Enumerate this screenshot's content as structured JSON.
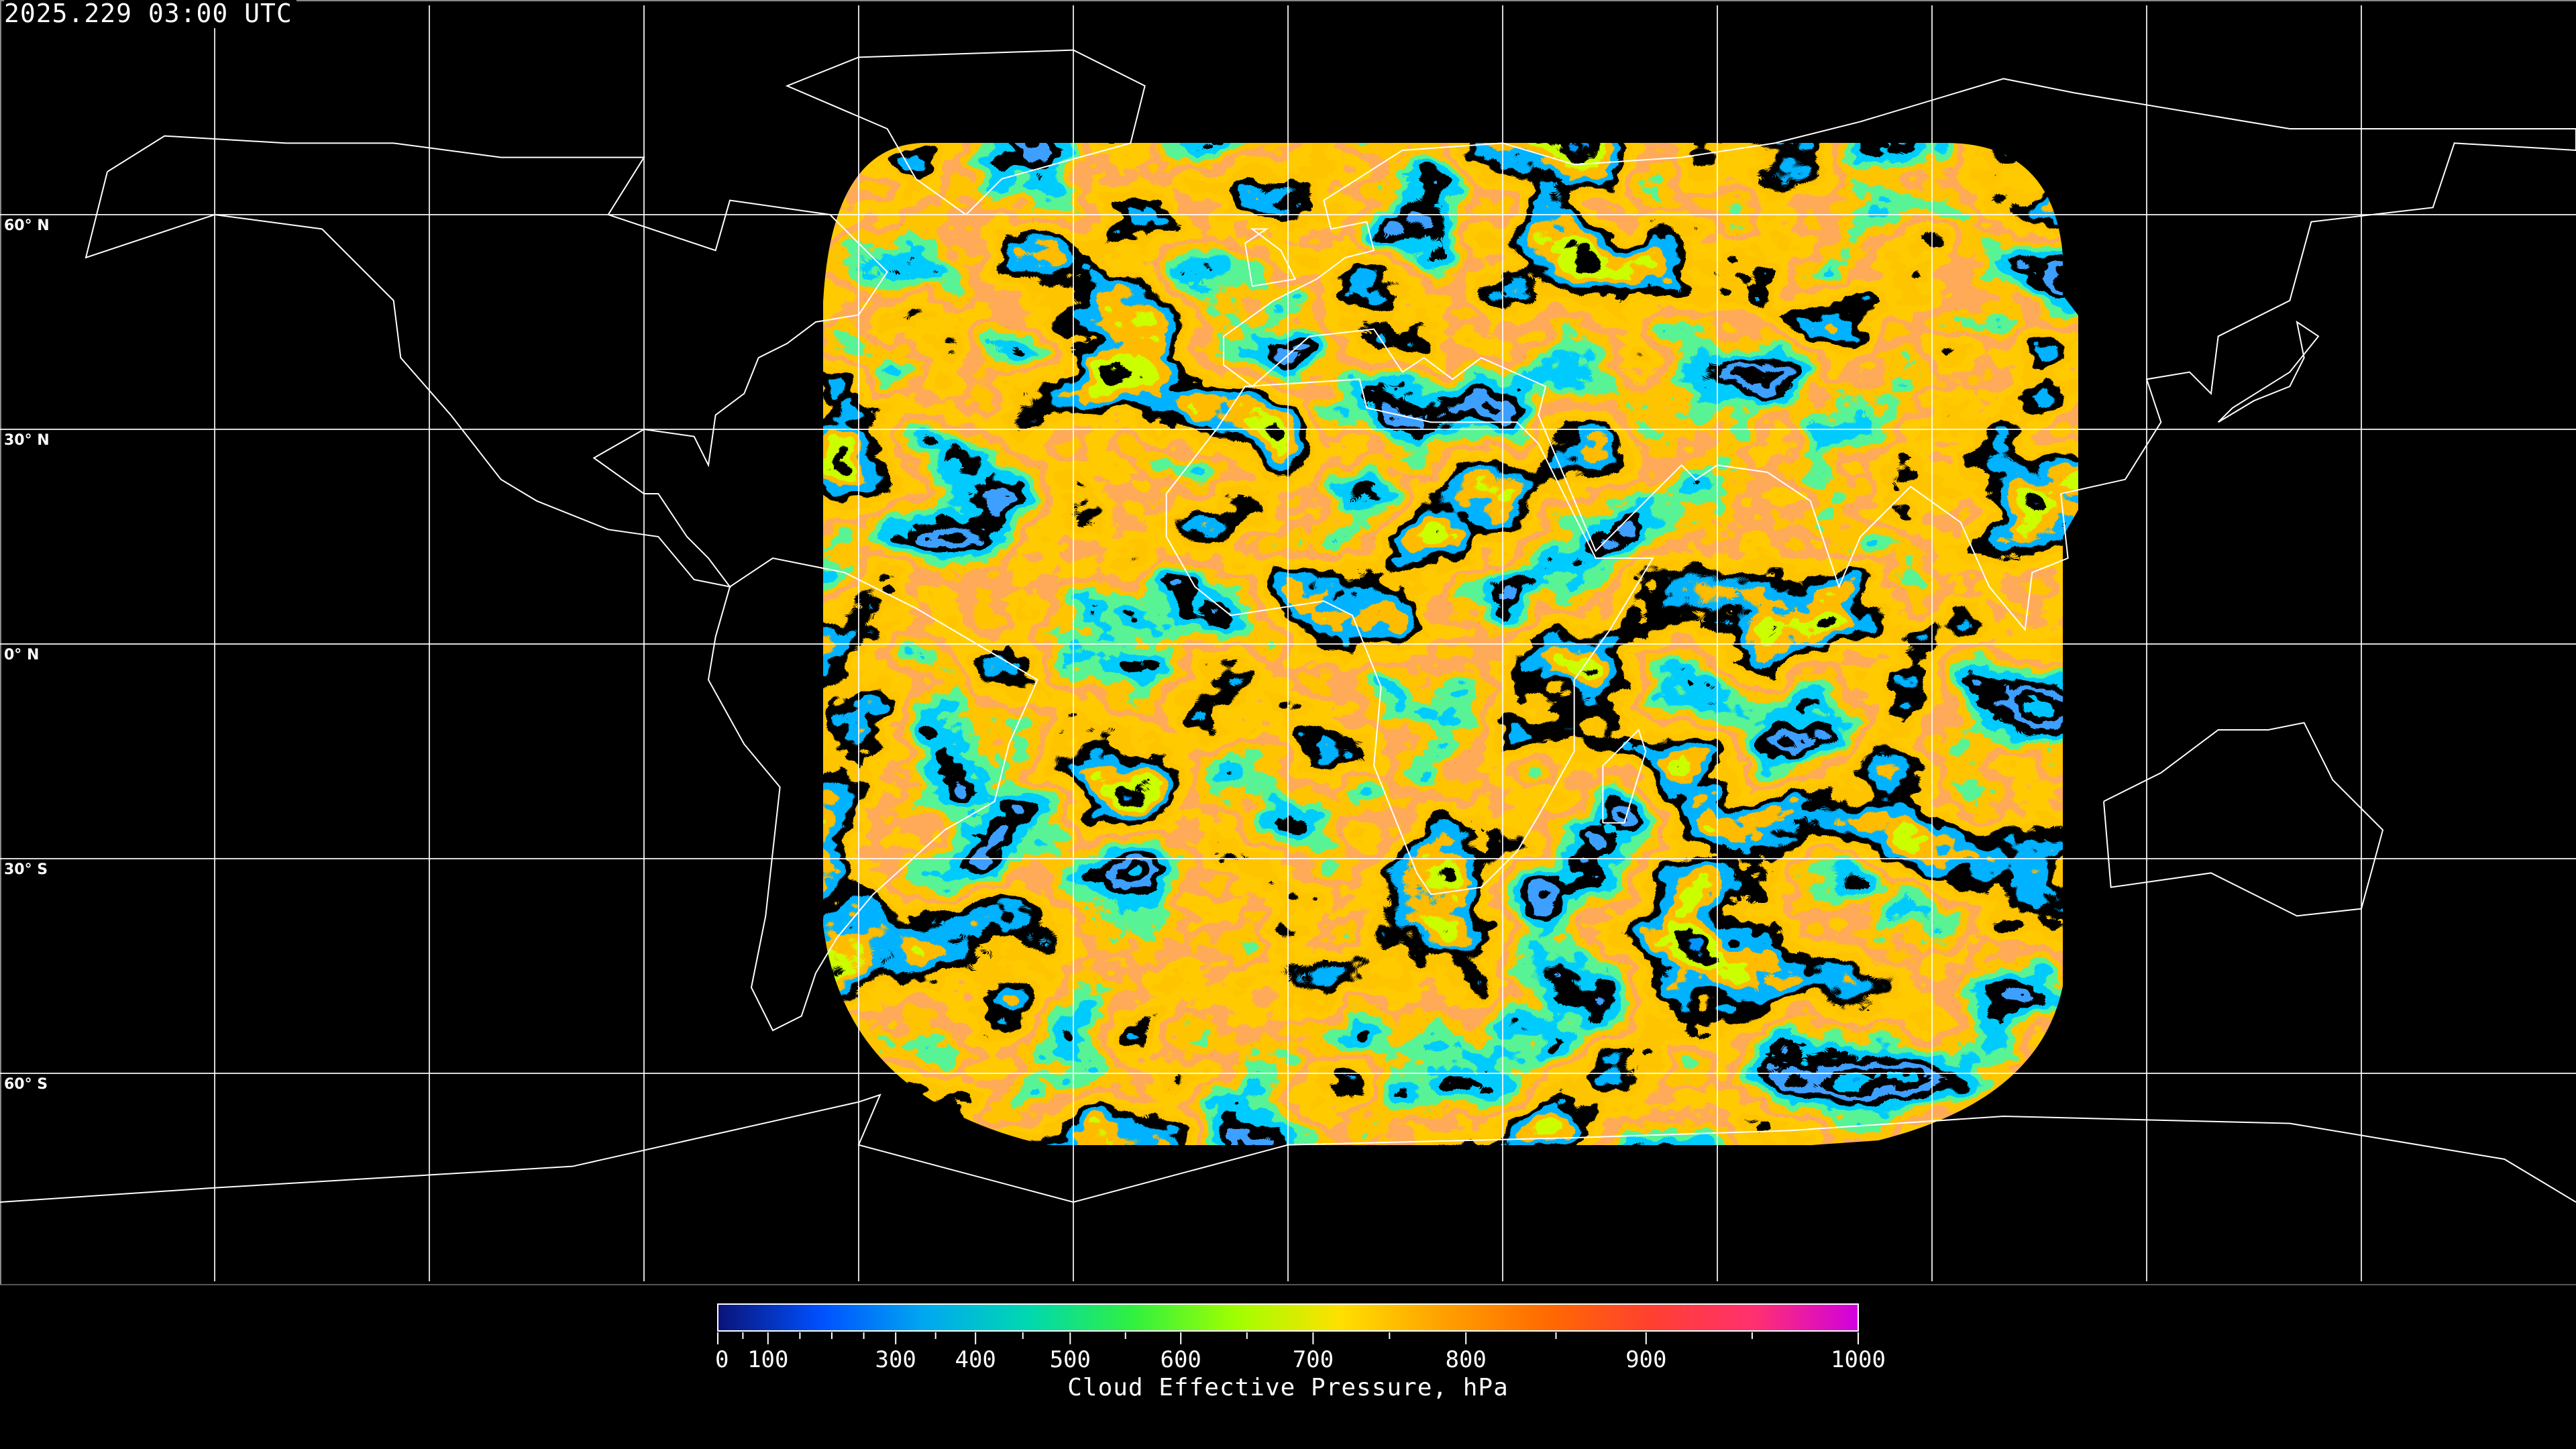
{
  "header": {
    "timestamp": "2025.229 03:00 UTC"
  },
  "map": {
    "projection": "equirectangular",
    "lon_range": [
      -180,
      180
    ],
    "lat_range": [
      90,
      -90
    ],
    "graticule_lons": [
      -150,
      -120,
      -90,
      -60,
      -30,
      0,
      30,
      60,
      90,
      120,
      150
    ],
    "graticule_lats": [
      60,
      30,
      0,
      -30,
      -60
    ],
    "lat_labels": [
      "60° N",
      "30° N",
      "0° N",
      "30° S",
      "60° S"
    ],
    "coastline_color": "#ffffff",
    "grid_color": "#ffffff"
  },
  "colorbar": {
    "title": "Cloud Effective Pressure, hPa",
    "min": 0,
    "max": 1000,
    "major_ticks": [
      {
        "value": 0,
        "label": "0"
      },
      {
        "value": 100,
        "label": "100"
      },
      {
        "value": 300,
        "label": "300"
      },
      {
        "value": 400,
        "label": "400"
      },
      {
        "value": 500,
        "label": "500"
      },
      {
        "value": 600,
        "label": "600"
      },
      {
        "value": 700,
        "label": "700"
      },
      {
        "value": 800,
        "label": "800"
      },
      {
        "value": 900,
        "label": "900"
      },
      {
        "value": 1000,
        "label": "1000"
      }
    ],
    "minor_ticks": [
      50,
      150,
      200,
      250,
      350,
      450,
      550,
      650,
      750,
      850,
      950
    ],
    "colors": [
      "#0a1478",
      "#0050ff",
      "#00a8f0",
      "#00d8b0",
      "#30f040",
      "#a0ff00",
      "#ffe000",
      "#ffa000",
      "#ff6a00",
      "#ff4030",
      "#ff3070",
      "#d000e0"
    ]
  }
}
